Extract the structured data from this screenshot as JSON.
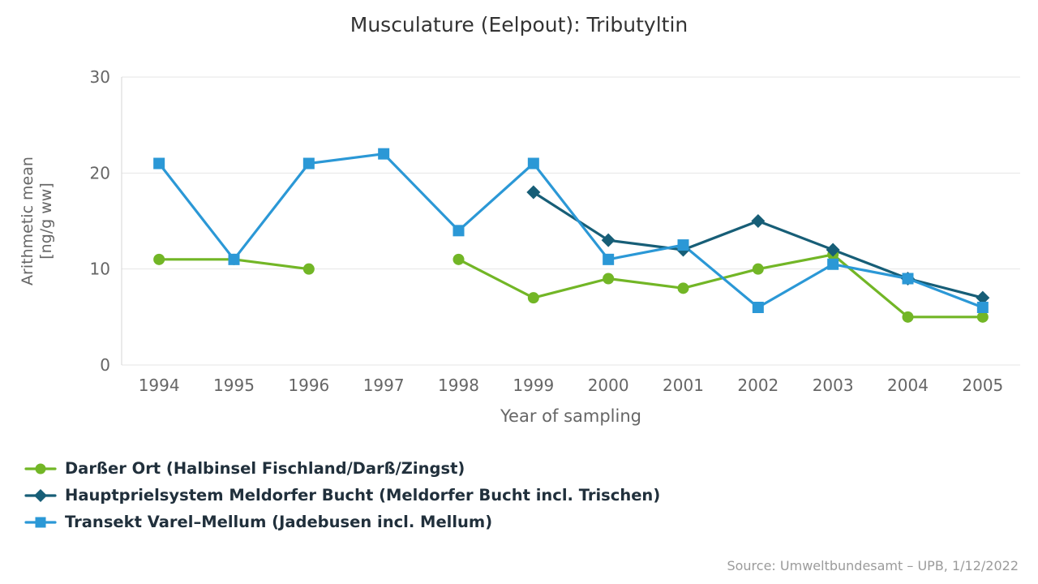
{
  "source": "Source: Umweltbundesamt – UPB, 1/12/2022",
  "colors": {
    "background": "#ffffff",
    "title_text": "#333333",
    "axis_text": "#666666",
    "grid": "#e6e6e6",
    "axis_line": "#d6d6d6",
    "legend_text": "#21303c",
    "source_text": "#9b9b9b"
  },
  "chart_data": {
    "type": "line",
    "title": "Musculature (Eelpout): Tributyltin",
    "xlabel": "Year of sampling",
    "ylabel": "Arithmetic mean [ng/g ww]",
    "ylabel_lines": [
      "Arithmetic mean",
      "[ng/g ww]"
    ],
    "categories": [
      "1994",
      "1995",
      "1996",
      "1997",
      "1998",
      "1999",
      "2000",
      "2001",
      "2002",
      "2003",
      "2004",
      "2005"
    ],
    "ylim": [
      0,
      30
    ],
    "yticks": [
      0,
      10,
      20,
      30
    ],
    "grid": true,
    "legend_position": "bottom-left",
    "series": [
      {
        "name": "Darßer Ort (Halbinsel Fischland/Darß/Zingst)",
        "marker": "circle",
        "color": "#72b626",
        "values": [
          11,
          11,
          10,
          null,
          11,
          7,
          9,
          8,
          10,
          11.5,
          5,
          5
        ]
      },
      {
        "name": "Hauptprielsystem Meldorfer Bucht (Meldorfer Bucht incl. Trischen)",
        "marker": "diamond",
        "color": "#175e77",
        "values": [
          null,
          null,
          null,
          null,
          null,
          18,
          13,
          12,
          15,
          12,
          9,
          7
        ]
      },
      {
        "name": "Transekt Varel–Mellum (Jadebusen incl. Mellum)",
        "marker": "square",
        "color": "#2b98d6",
        "values": [
          21,
          11,
          21,
          22,
          14,
          21,
          11,
          12.5,
          6,
          10.5,
          9,
          6
        ]
      }
    ]
  }
}
